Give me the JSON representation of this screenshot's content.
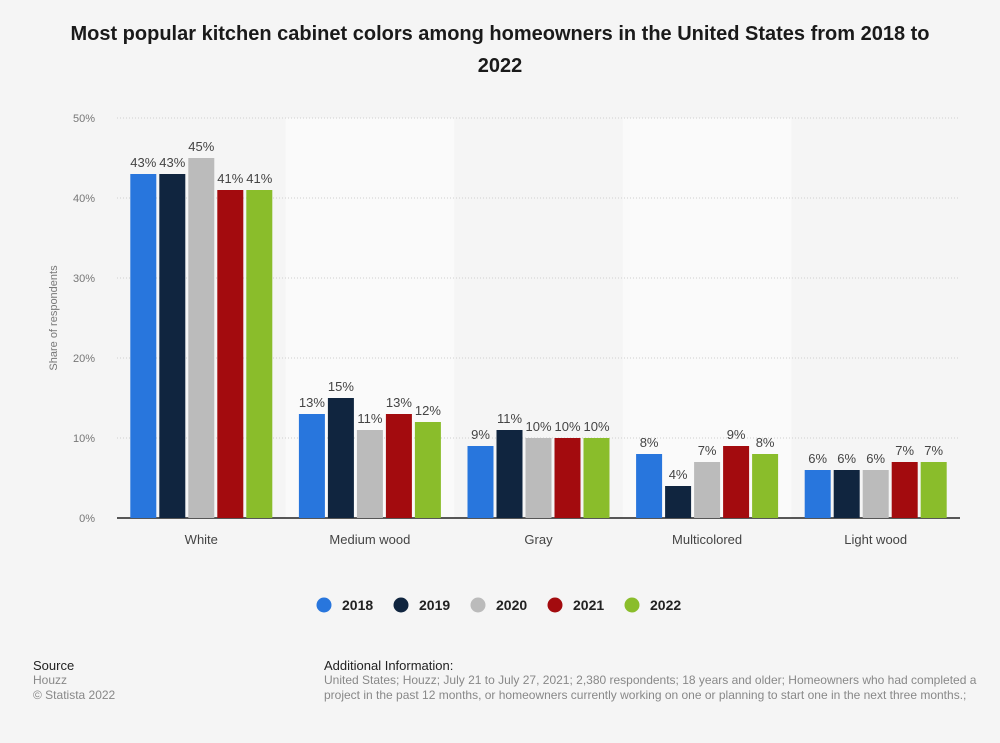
{
  "chart_data": {
    "type": "bar",
    "title": "Most popular kitchen cabinet colors among homeowners in the United States from 2018 to 2022",
    "xlabel": "",
    "ylabel": "Share of respondents",
    "ylim": [
      0,
      50
    ],
    "yticks": [
      "0%",
      "10%",
      "20%",
      "30%",
      "40%",
      "50%"
    ],
    "categories": [
      "White",
      "Medium wood",
      "Gray",
      "Multicolored",
      "Light wood"
    ],
    "series": [
      {
        "name": "2018",
        "color": "#2876dd",
        "values": [
          43,
          13,
          9,
          8,
          6
        ]
      },
      {
        "name": "2019",
        "color": "#10253f",
        "values": [
          43,
          15,
          11,
          4,
          6
        ]
      },
      {
        "name": "2020",
        "color": "#bbbbbb",
        "values": [
          45,
          11,
          10,
          7,
          6
        ]
      },
      {
        "name": "2021",
        "color": "#a30b0e",
        "values": [
          41,
          13,
          10,
          9,
          7
        ]
      },
      {
        "name": "2022",
        "color": "#8abd2b",
        "values": [
          41,
          12,
          10,
          8,
          7
        ]
      }
    ],
    "grid": true,
    "legend": "bottom-center"
  },
  "footer": {
    "source_heading": "Source",
    "source": "Houzz",
    "copyright": "© Statista 2022",
    "info_heading": "Additional Information:",
    "info_line1": "United States; Houzz; July 21 to July 27, 2021; 2,380 respondents; 18 years and older; Homeowners who had completed a",
    "info_line2": "project in the past 12 months, or homeowners currently working on one or planning to start one in the next three months.;"
  }
}
